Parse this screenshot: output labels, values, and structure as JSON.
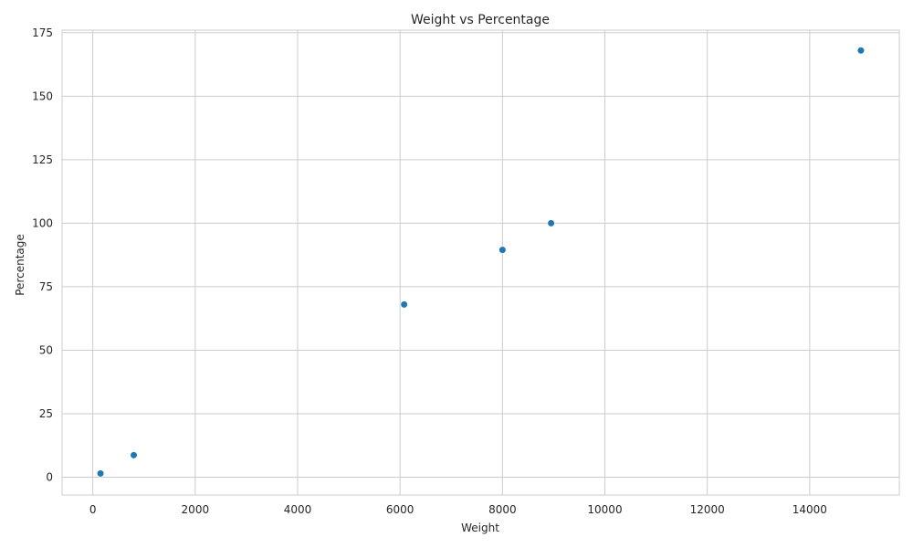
{
  "chart_data": {
    "type": "scatter",
    "title": "Weight vs Percentage",
    "xlabel": "Weight",
    "ylabel": "Percentage",
    "xlim": [
      -600,
      15750
    ],
    "ylim": [
      -7,
      176
    ],
    "x_ticks": [
      0,
      2000,
      4000,
      6000,
      8000,
      10000,
      12000,
      14000
    ],
    "y_ticks": [
      0,
      25,
      50,
      75,
      100,
      125,
      150,
      175
    ],
    "grid": true,
    "legend": "none",
    "marker_color": "#1f77b4",
    "grid_color": "#cccccc",
    "series": [
      {
        "x": [
          150,
          800,
          6080,
          8000,
          8950,
          15000
        ],
        "y": [
          1.5,
          8.7,
          68,
          89.5,
          100,
          168
        ]
      }
    ]
  }
}
